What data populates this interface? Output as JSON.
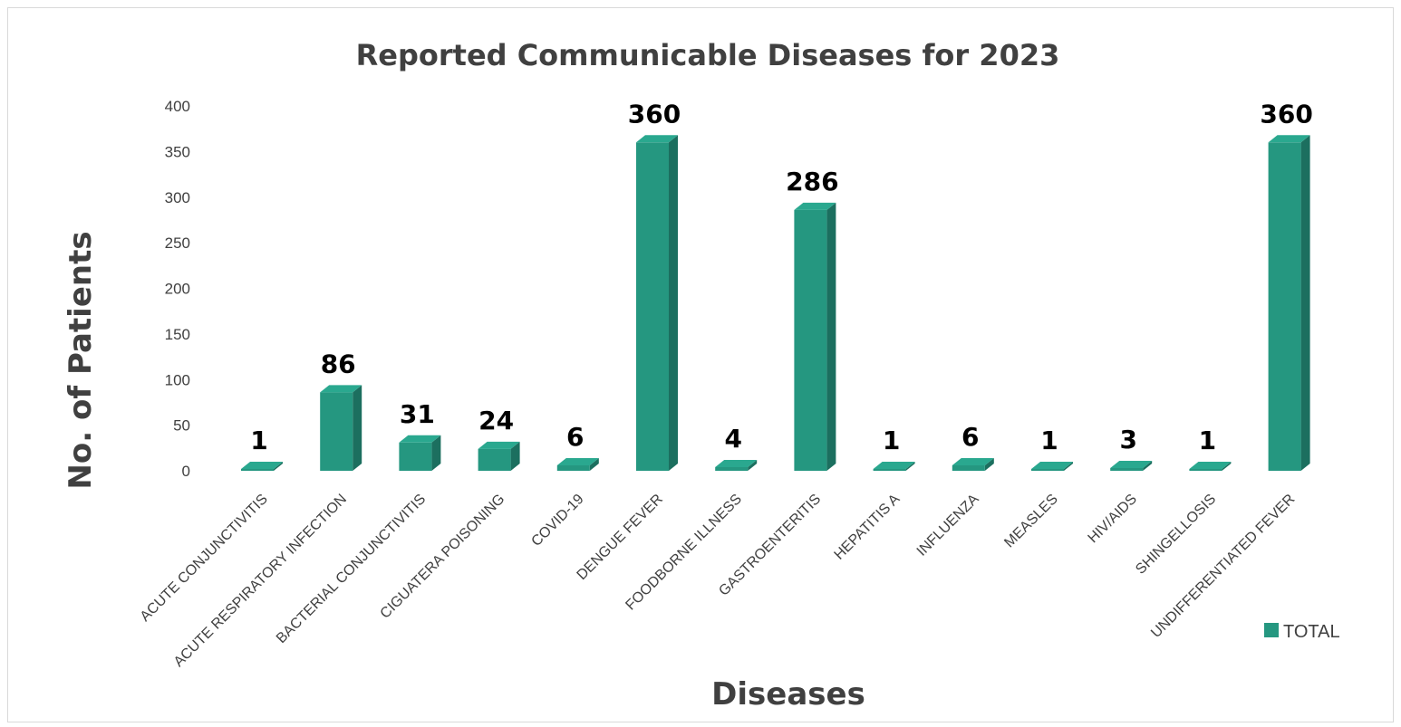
{
  "chart_data": {
    "type": "bar",
    "style": "3d-column",
    "title": "Reported Communicable Diseases for 2023",
    "xlabel": "Diseases",
    "ylabel": "No. of Patients",
    "ylim": [
      0,
      400
    ],
    "yticks": [
      0,
      50,
      100,
      150,
      200,
      250,
      300,
      350,
      400
    ],
    "grid": false,
    "legend_position": "bottom-right",
    "categories": [
      "ACUTE CONJUNCTIVITIS",
      "ACUTE RESPIRATORY INFECTION",
      "BACTERIAL CONJUNCTIVITIS",
      "CIGUATERA POISONING",
      "COVID-19",
      "DENGUE FEVER",
      "FOODBORNE ILLNESS",
      "GASTROENTERITIS",
      "HEPATITIS A",
      "INFLUENZA",
      "MEASLES",
      "HIV/AIDS",
      "SHINGELLOSIS",
      "UNDIFFERENTIATED FEVER"
    ],
    "series": [
      {
        "name": "TOTAL",
        "color": "#259780",
        "values": [
          1,
          86,
          31,
          24,
          6,
          360,
          4,
          286,
          1,
          6,
          1,
          3,
          1,
          360
        ]
      }
    ]
  }
}
